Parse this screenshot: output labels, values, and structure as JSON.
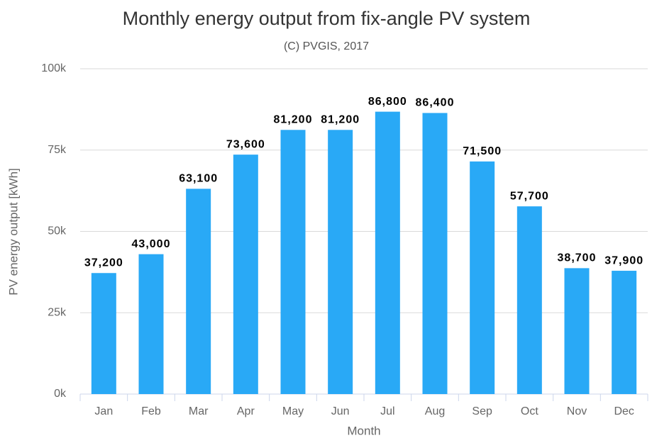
{
  "chart_data": {
    "type": "bar",
    "title": "Monthly energy output from fix-angle PV system",
    "subtitle": "(C) PVGIS, 2017",
    "y_label": "PV energy output [kWh]",
    "x_label": "Month",
    "categories": [
      "Jan",
      "Feb",
      "Mar",
      "Apr",
      "May",
      "Jun",
      "Jul",
      "Aug",
      "Sep",
      "Oct",
      "Nov",
      "Dec"
    ],
    "values": [
      37200,
      43000,
      63100,
      73600,
      81200,
      81200,
      86800,
      86400,
      71500,
      57700,
      38700,
      37900
    ],
    "value_labels": [
      "37,200",
      "43,000",
      "63,100",
      "73,600",
      "81,200",
      "81,200",
      "86,800",
      "86,400",
      "71,500",
      "57,700",
      "38,700",
      "37,900"
    ],
    "color": "#29a9f6",
    "ylim": [
      0,
      100000
    ],
    "yticks": [
      {
        "value": 0,
        "label": "0k"
      },
      {
        "value": 25000,
        "label": "25k"
      },
      {
        "value": 50000,
        "label": "50k"
      },
      {
        "value": 75000,
        "label": "75k"
      },
      {
        "value": 100000,
        "label": "100k"
      }
    ],
    "grid": true
  }
}
